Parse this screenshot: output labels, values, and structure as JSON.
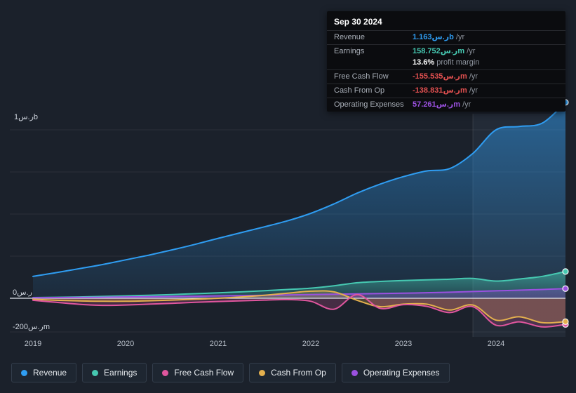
{
  "chart_data": {
    "type": "line",
    "title": "",
    "x": [
      2019.0,
      2019.25,
      2019.5,
      2019.75,
      2020.0,
      2020.25,
      2020.5,
      2020.75,
      2021.0,
      2021.25,
      2021.5,
      2021.75,
      2022.0,
      2022.25,
      2022.5,
      2022.75,
      2023.0,
      2023.25,
      2023.5,
      2023.75,
      2024.0,
      2024.25,
      2024.5,
      2024.75
    ],
    "series": [
      {
        "name": "Revenue",
        "color": "#2f9df2",
        "values": [
          130,
          152,
          176,
          200,
          228,
          256,
          287,
          320,
          356,
          390,
          424,
          460,
          504,
          560,
          624,
          678,
          722,
          756,
          770,
          860,
          1000,
          1020,
          1040,
          1163
        ]
      },
      {
        "name": "Earnings",
        "color": "#46c8b1",
        "values": [
          4,
          6,
          8,
          11,
          14,
          18,
          22,
          27,
          32,
          38,
          45,
          52,
          60,
          74,
          92,
          100,
          105,
          109,
          113,
          118,
          102,
          114,
          130,
          158.752
        ]
      },
      {
        "name": "Free Cash Flow",
        "color": "#e0569e",
        "values": [
          -12,
          -24,
          -36,
          -42,
          -40,
          -35,
          -30,
          -24,
          -19,
          -15,
          -11,
          -8,
          -18,
          -65,
          22,
          -60,
          -38,
          -48,
          -85,
          -50,
          -160,
          -140,
          -170,
          -155.535
        ]
      },
      {
        "name": "Cash From Op",
        "color": "#e4b04e",
        "values": [
          -6,
          -12,
          -16,
          -18,
          -18,
          -15,
          -11,
          -6,
          0,
          8,
          18,
          30,
          42,
          38,
          -12,
          -50,
          -35,
          -35,
          -70,
          -40,
          -130,
          -110,
          -145,
          -138.831
        ]
      },
      {
        "name": "Operating Expenses",
        "color": "#9b51e0",
        "values": [
          3,
          4,
          5,
          6,
          8,
          9,
          11,
          12,
          14,
          16,
          18,
          20,
          22,
          24,
          26,
          28,
          30,
          33,
          36,
          40,
          44,
          48,
          52,
          57.261
        ]
      }
    ],
    "ylim": [
      -220,
      1220
    ],
    "x_axis_labels": [
      "2019",
      "2020",
      "2021",
      "2022",
      "2023",
      "2024"
    ],
    "y_axis_labels": [
      "1ر.سb",
      "0ر.س",
      "-200ر.سm"
    ],
    "y_tick_values": [
      1000,
      0,
      -200
    ],
    "gridlines": [
      1000,
      750,
      500,
      250,
      -200
    ],
    "highlight_band": {
      "x_start": 2023.75,
      "x_end": 2024.75
    },
    "legend_position": "bottom"
  },
  "tooltip": {
    "date": "Sep 30 2024",
    "rows": [
      {
        "label": "Revenue",
        "value": "1.163ر.سb",
        "unit": " /yr",
        "color": "#2f9df2"
      },
      {
        "label": "Earnings",
        "value": "158.752ر.سm",
        "unit": " /yr",
        "color": "#46c8b1"
      },
      {
        "label": "",
        "value": "13.6%",
        "unit": " profit margin",
        "color": "#ffffff"
      },
      {
        "label": "Free Cash Flow",
        "value": "-155.535ر.سm",
        "unit": " /yr",
        "color": "#e25050"
      },
      {
        "label": "Cash From Op",
        "value": "-138.831ر.سm",
        "unit": " /yr",
        "color": "#e25050"
      },
      {
        "label": "Operating Expenses",
        "value": "57.261ر.سm",
        "unit": " /yr",
        "color": "#9b51e0"
      }
    ]
  },
  "legend": {
    "items": [
      {
        "label": "Revenue",
        "color": "#2f9df2"
      },
      {
        "label": "Earnings",
        "color": "#46c8b1"
      },
      {
        "label": "Free Cash Flow",
        "color": "#e0569e"
      },
      {
        "label": "Cash From Op",
        "color": "#e4b04e"
      },
      {
        "label": "Operating Expenses",
        "color": "#9b51e0"
      }
    ]
  },
  "colors": {
    "background": "#1b212b",
    "zero_line": "#e2e8f0",
    "band": "rgba(140,168,210,0.08)"
  }
}
